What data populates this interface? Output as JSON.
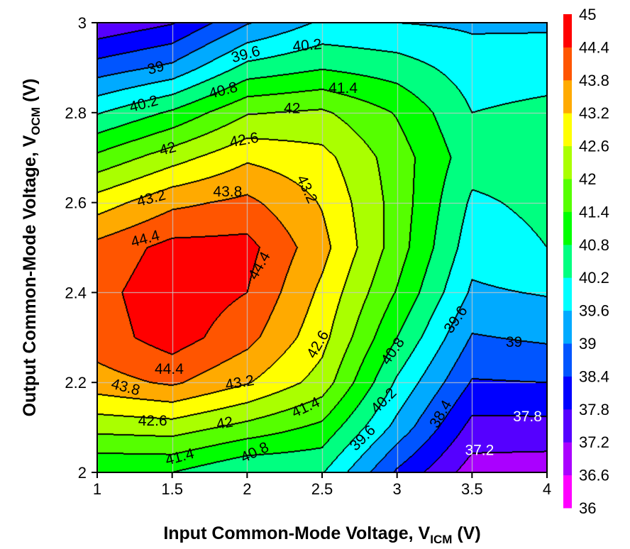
{
  "chart_data": {
    "type": "heatmap",
    "subtype": "filled-contour",
    "xlabel": "Input Common-Mode Voltage, V",
    "xlabel_sub": "ICM",
    "xlabel_unit": " (V)",
    "ylabel": "Output Common-Mode Voltage, V",
    "ylabel_sub": "OCM",
    "ylabel_unit": " (V)",
    "xlim": [
      1,
      4
    ],
    "ylim": [
      2,
      3
    ],
    "xticks": [
      "1",
      "1.5",
      "2",
      "2.5",
      "3",
      "3.5",
      "4"
    ],
    "yticks": [
      "2",
      "2.2",
      "2.4",
      "2.6",
      "2.8",
      "3"
    ],
    "grid": true,
    "x": [
      1,
      1.5,
      2,
      2.5,
      3,
      3.5,
      4
    ],
    "y": [
      2.0,
      2.1,
      2.2,
      2.3,
      2.4,
      2.5,
      2.6,
      2.7,
      2.8,
      2.9,
      3.0
    ],
    "z": [
      [
        40.8,
        40.8,
        40.2,
        40.25,
        38.3,
        36.9,
        36.85
      ],
      [
        42.2,
        42.3,
        41.8,
        41.25,
        39.4,
        37.6,
        37.6
      ],
      [
        43.55,
        43.9,
        43.25,
        42.35,
        40.1,
        38.35,
        38.4
      ],
      [
        44.1,
        44.7,
        44.0,
        42.8,
        40.8,
        38.95,
        39.1
      ],
      [
        44.2,
        44.8,
        44.4,
        43.06,
        41.35,
        39.5,
        39.65
      ],
      [
        44.0,
        44.6,
        44.6,
        43.4,
        41.7,
        39.85,
        40.2
      ],
      [
        42.9,
        43.65,
        43.95,
        43.15,
        41.75,
        40.1,
        40.35
      ],
      [
        41.55,
        42.35,
        43.1,
        42.8,
        41.7,
        40.45,
        40.45
      ],
      [
        40.15,
        40.9,
        41.95,
        42.1,
        41.35,
        40.2,
        40.35
      ],
      [
        38.67,
        39.15,
        40.4,
        40.75,
        40.5,
        39.9,
        39.95
      ],
      [
        37.3,
        37.75,
        38.95,
        39.7,
        39.6,
        39.5,
        39.5
      ]
    ],
    "levels": [
      36,
      36.6,
      37.2,
      37.8,
      38.4,
      39,
      39.6,
      40.2,
      40.8,
      41.4,
      42,
      42.6,
      43.2,
      43.8,
      44.4,
      45
    ],
    "level_labels": [
      "36",
      "36.6",
      "37.2",
      "37.8",
      "38.4",
      "39",
      "39.6",
      "40.2",
      "40.8",
      "41.4",
      "42",
      "42.6",
      "43.2",
      "43.8",
      "44.4",
      "45"
    ],
    "colors": [
      "#ff00ff",
      "#aa00ff",
      "#5500ff",
      "#0000ff",
      "#0055ff",
      "#00aaff",
      "#00ffff",
      "#00ff80",
      "#00ff00",
      "#55ff00",
      "#aaff00",
      "#ffff00",
      "#ffaa00",
      "#ff5500",
      "#ff0000"
    ],
    "contour_labels": [
      {
        "text": "39",
        "x": 1.39,
        "y": 2.9
      },
      {
        "text": "39.6",
        "x": 1.99,
        "y": 2.93
      },
      {
        "text": "40.2",
        "x": 2.4,
        "y": 2.95
      },
      {
        "text": "40.2",
        "x": 1.31,
        "y": 2.82
      },
      {
        "text": "40.8",
        "x": 1.84,
        "y": 2.85
      },
      {
        "text": "41.4",
        "x": 2.64,
        "y": 2.855
      },
      {
        "text": "42",
        "x": 2.3,
        "y": 2.81
      },
      {
        "text": "42",
        "x": 1.47,
        "y": 2.72
      },
      {
        "text": "42.6",
        "x": 1.98,
        "y": 2.74
      },
      {
        "text": "43.2",
        "x": 1.36,
        "y": 2.61
      },
      {
        "text": "43.8",
        "x": 1.87,
        "y": 2.625
      },
      {
        "text": "43.2",
        "x": 2.4,
        "y": 2.63
      },
      {
        "text": "44.4",
        "x": 1.32,
        "y": 2.52
      },
      {
        "text": "44.4",
        "x": 2.08,
        "y": 2.46
      },
      {
        "text": "44.4",
        "x": 1.48,
        "y": 2.23
      },
      {
        "text": "43.8",
        "x": 1.19,
        "y": 2.19
      },
      {
        "text": "43.2",
        "x": 1.95,
        "y": 2.2
      },
      {
        "text": "42.6",
        "x": 1.37,
        "y": 2.115
      },
      {
        "text": "42",
        "x": 1.85,
        "y": 2.11
      },
      {
        "text": "41.4",
        "x": 1.55,
        "y": 2.035
      },
      {
        "text": "41.4",
        "x": 2.39,
        "y": 2.145
      },
      {
        "text": "40.8",
        "x": 2.05,
        "y": 2.045
      },
      {
        "text": "42.6",
        "x": 2.47,
        "y": 2.285
      },
      {
        "text": "40.8",
        "x": 2.97,
        "y": 2.27
      },
      {
        "text": "40.2",
        "x": 2.91,
        "y": 2.16
      },
      {
        "text": "39.6",
        "x": 2.77,
        "y": 2.077
      },
      {
        "text": "39.6",
        "x": 3.39,
        "y": 2.34
      },
      {
        "text": "39",
        "x": 3.78,
        "y": 2.29
      },
      {
        "text": "38.4",
        "x": 3.29,
        "y": 2.13
      },
      {
        "text": "37.8",
        "x": 3.87,
        "y": 2.125,
        "color": "#ffffff"
      },
      {
        "text": "37.2",
        "x": 3.55,
        "y": 2.05,
        "color": "#ffffff"
      }
    ]
  }
}
